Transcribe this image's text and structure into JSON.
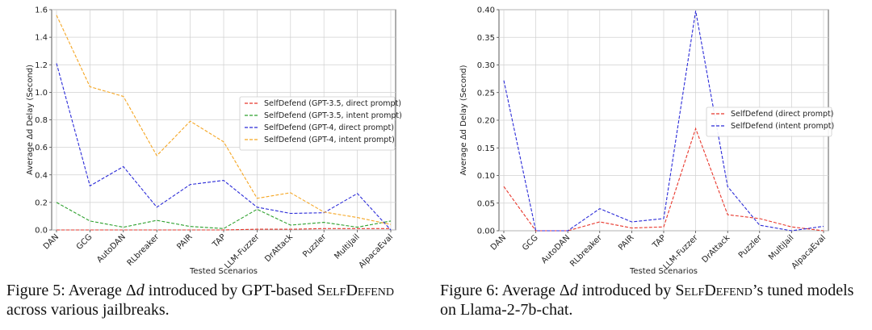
{
  "chart_data": [
    {
      "type": "line",
      "xlabel": "Tested Scenarios",
      "ylabel": "Average Δd Delay (Second)",
      "categories": [
        "DAN",
        "GCG",
        "AutoDAN",
        "RLbreaker",
        "PAIR",
        "TAP",
        "LLM-Fuzzer",
        "DrAttack",
        "Puzzler",
        "MultiJail",
        "AlpacaEval"
      ],
      "ylim": [
        0,
        1.6
      ],
      "yticks": [
        "0.0",
        "0.2",
        "0.4",
        "0.6",
        "0.8",
        "1.0",
        "1.2",
        "1.4",
        "1.6"
      ],
      "grid": true,
      "legend_position": "center-right",
      "series": [
        {
          "name": "SelfDefend (GPT-3.5, direct prompt)",
          "color": "#e8372c",
          "values": [
            0.0,
            0.0,
            0.0,
            0.0,
            0.0,
            0.0,
            0.005,
            0.005,
            0.01,
            0.01,
            0.01
          ]
        },
        {
          "name": "SelfDefend (GPT-3.5, intent prompt)",
          "color": "#2ca02c",
          "values": [
            0.2,
            0.065,
            0.02,
            0.07,
            0.025,
            0.01,
            0.15,
            0.035,
            0.055,
            0.02,
            0.065
          ]
        },
        {
          "name": "SelfDefend (GPT-4, direct prompt)",
          "color": "#2b2bd8",
          "values": [
            1.21,
            0.32,
            0.46,
            0.165,
            0.33,
            0.36,
            0.165,
            0.12,
            0.125,
            0.265,
            0.0
          ]
        },
        {
          "name": "SelfDefend (GPT-4, intent prompt)",
          "color": "#f5a623",
          "values": [
            1.56,
            1.04,
            0.97,
            0.54,
            0.79,
            0.64,
            0.23,
            0.27,
            0.13,
            0.09,
            0.04
          ]
        }
      ],
      "caption": {
        "prefix": "Figure 5: Average Δ",
        "var": "d",
        "mid": " introduced by GPT-based ",
        "brand": "SelfDefend",
        "suffix": " across various jailbreaks."
      }
    },
    {
      "type": "line",
      "xlabel": "Tested Scenarios",
      "ylabel": "Average Δd Delay (Second)",
      "categories": [
        "DAN",
        "GCG",
        "AutoDAN",
        "RLbreaker",
        "PAIR",
        "TAP",
        "LLM-Fuzzer",
        "DrAttack",
        "Puzzler",
        "MultiJail",
        "AlpacaEval"
      ],
      "ylim": [
        0,
        0.4
      ],
      "yticks": [
        "0.00",
        "0.05",
        "0.10",
        "0.15",
        "0.20",
        "0.25",
        "0.30",
        "0.35",
        "0.40"
      ],
      "grid": true,
      "legend_position": "upper-right",
      "series": [
        {
          "name": "SelfDefend (direct prompt)",
          "color": "#e8372c",
          "values": [
            0.08,
            0.0,
            0.0,
            0.016,
            0.005,
            0.007,
            0.185,
            0.029,
            0.022,
            0.007,
            0.0
          ]
        },
        {
          "name": "SelfDefend (intent prompt)",
          "color": "#2b2bd8",
          "values": [
            0.272,
            0.0,
            0.0,
            0.04,
            0.016,
            0.022,
            0.398,
            0.08,
            0.01,
            0.0,
            0.008
          ]
        }
      ],
      "caption": {
        "prefix": "Figure 6: Average Δ",
        "var": "d",
        "mid": " introduced by ",
        "brand": "SelfDefend",
        "suffix": "’s tuned models on Llama-2-7b-chat."
      }
    }
  ]
}
